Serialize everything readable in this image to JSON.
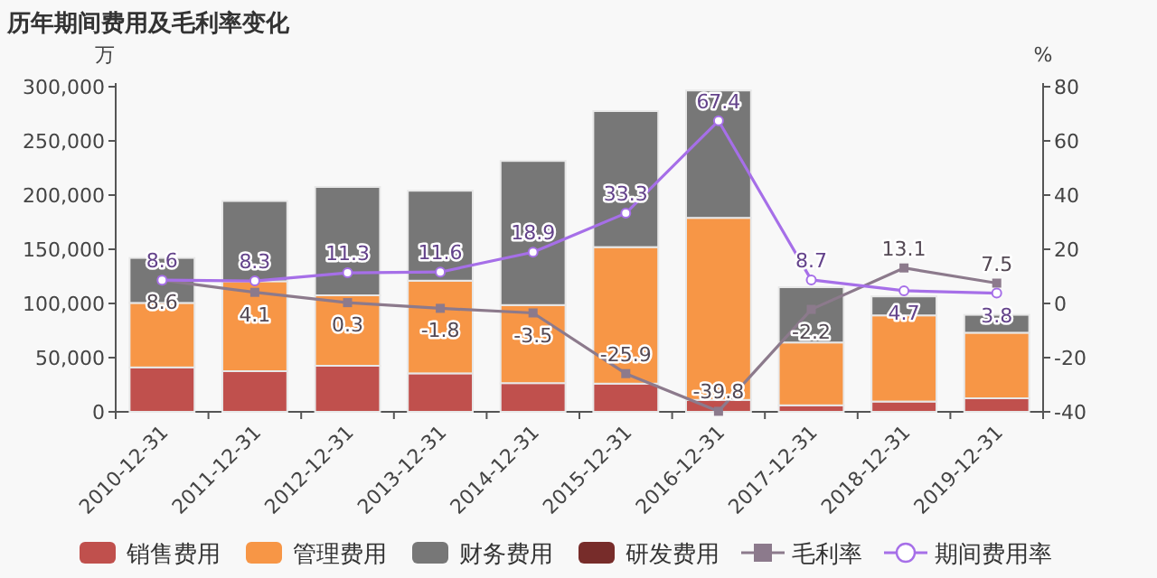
{
  "chart_data": {
    "type": "bar",
    "title": "历年期间费用及毛利率变化",
    "ylabel": "万",
    "y2label": "%",
    "categories": [
      "2010-12-31",
      "2011-12-31",
      "2012-12-31",
      "2013-12-31",
      "2014-12-31",
      "2015-12-31",
      "2016-12-31",
      "2017-12-31",
      "2018-12-31",
      "2019-12-31"
    ],
    "stacked": true,
    "legend": "bottom",
    "grid": false,
    "ylim": [
      0,
      300000
    ],
    "yticks": [
      {
        "value": 0,
        "label": "0"
      },
      {
        "value": 50000,
        "label": "50,000"
      },
      {
        "value": 100000,
        "label": "100,000"
      },
      {
        "value": 150000,
        "label": "150,000"
      },
      {
        "value": 200000,
        "label": "200,000"
      },
      {
        "value": 250000,
        "label": "250,000"
      },
      {
        "value": 300000,
        "label": "300,000"
      }
    ],
    "y2lim": [
      -40,
      80
    ],
    "y2ticks": [
      -40,
      -20,
      0,
      20,
      40,
      60,
      80
    ],
    "series": [
      {
        "name": "销售费用",
        "color": "#c0504d",
        "values": [
          41000,
          37500,
          42500,
          35500,
          26500,
          26000,
          11000,
          6000,
          9500,
          12500
        ]
      },
      {
        "name": "管理费用",
        "color": "#f79646",
        "values": [
          59500,
          83000,
          65000,
          85500,
          72000,
          126000,
          168000,
          58000,
          79500,
          60500
        ]
      },
      {
        "name": "财务费用",
        "color": "#777777",
        "values": [
          41500,
          74000,
          100000,
          83000,
          133000,
          125500,
          117500,
          51000,
          17500,
          16500
        ]
      },
      {
        "name": "研发费用",
        "color": "#772c2a",
        "values": [
          null,
          null,
          null,
          null,
          null,
          null,
          null,
          null,
          null,
          null
        ]
      },
      {
        "name": "毛利率",
        "type": "line",
        "axis": "y2",
        "marker": "square",
        "color": "#8c7a8c",
        "values": [
          8.6,
          4.1,
          0.3,
          -1.8,
          -3.5,
          -25.9,
          -39.8,
          -2.2,
          13.1,
          7.5
        ],
        "value_labels": [
          "8.6",
          "4.1",
          "0.3",
          "-1.8",
          "-3.5",
          "-25.9",
          "-39.8",
          "-2.2",
          "13.1",
          "7.5"
        ]
      },
      {
        "name": "期间费用率",
        "type": "line",
        "axis": "y2",
        "marker": "circle",
        "color": "#a66fe8",
        "values": [
          8.6,
          8.3,
          11.3,
          11.6,
          18.9,
          33.3,
          67.4,
          8.7,
          4.7,
          3.8
        ],
        "value_labels": [
          "8.6",
          "8.3",
          "11.3",
          "11.6",
          "18.9",
          "33.3",
          "67.4",
          "8.7",
          "4.7",
          "3.8"
        ]
      }
    ]
  }
}
